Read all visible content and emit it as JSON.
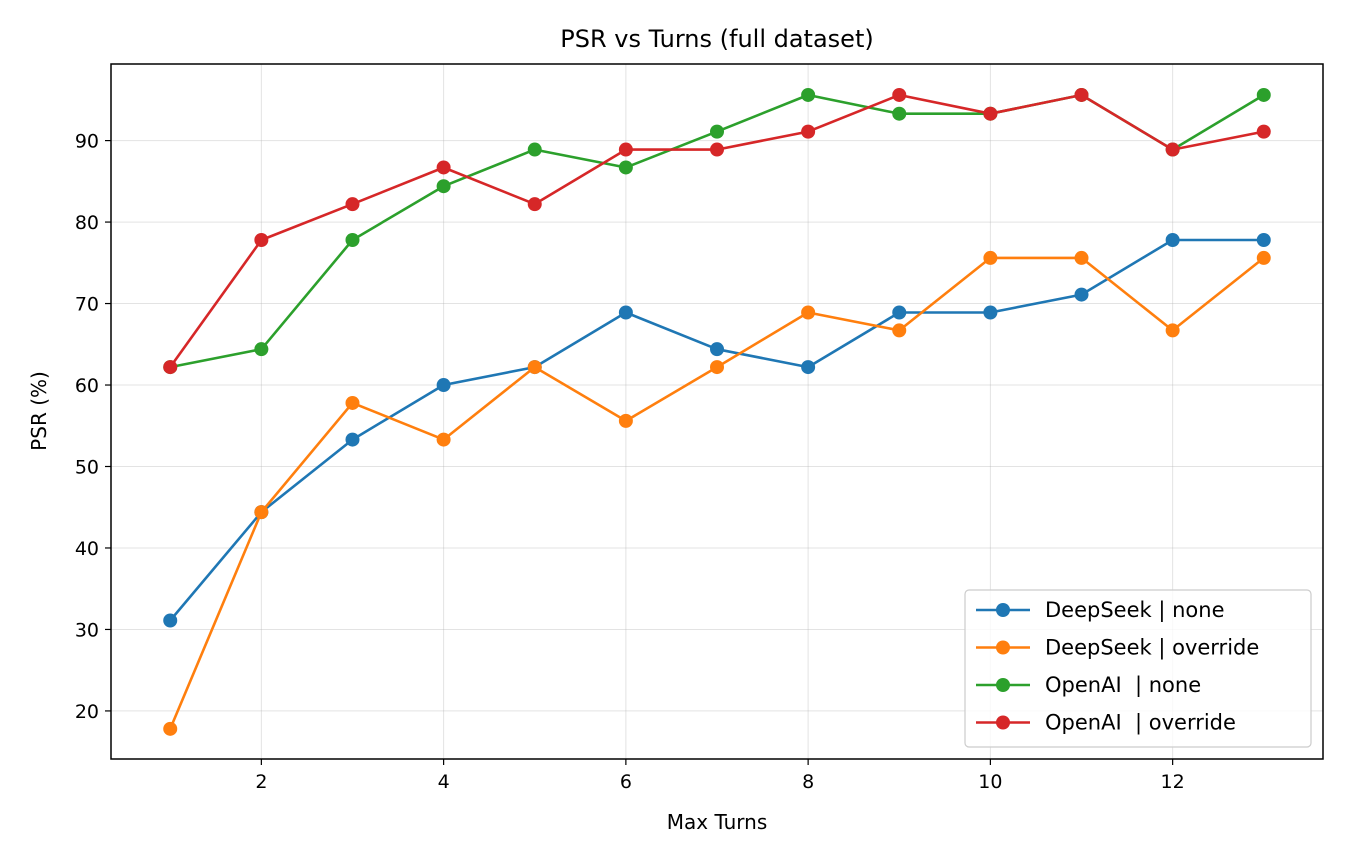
{
  "chart_data": {
    "type": "line",
    "title": "PSR vs Turns (full dataset)",
    "xlabel": "Max Turns",
    "ylabel": "PSR (%)",
    "xlim": [
      0.35,
      13.65
    ],
    "ylim": [
      14.1,
      99.4
    ],
    "x_ticks": [
      2,
      4,
      6,
      8,
      10,
      12
    ],
    "y_ticks": [
      20,
      30,
      40,
      50,
      60,
      70,
      80,
      90
    ],
    "grid": true,
    "legend_position": "lower-right",
    "x": [
      1,
      2,
      3,
      4,
      5,
      6,
      7,
      8,
      9,
      10,
      11,
      12,
      13
    ],
    "series": [
      {
        "name": "DeepSeek | none",
        "color": "#1f77b4",
        "values": [
          31.1,
          44.4,
          53.3,
          60.0,
          62.2,
          68.9,
          64.4,
          62.2,
          68.9,
          68.9,
          71.1,
          77.8,
          77.8
        ]
      },
      {
        "name": "DeepSeek | override",
        "color": "#ff7f0e",
        "values": [
          17.8,
          44.4,
          57.8,
          53.3,
          62.2,
          55.6,
          62.2,
          68.9,
          66.7,
          75.6,
          75.6,
          66.7,
          75.6
        ]
      },
      {
        "name": "OpenAI  | none",
        "color": "#2ca02c",
        "values": [
          62.2,
          64.4,
          77.8,
          84.4,
          88.9,
          86.7,
          91.1,
          95.6,
          93.3,
          93.3,
          95.6,
          88.9,
          95.6
        ]
      },
      {
        "name": "OpenAI  | override",
        "color": "#d62728",
        "values": [
          62.2,
          77.8,
          82.2,
          86.7,
          82.2,
          88.9,
          88.9,
          91.1,
          95.6,
          93.3,
          95.6,
          88.9,
          91.1
        ]
      }
    ]
  }
}
